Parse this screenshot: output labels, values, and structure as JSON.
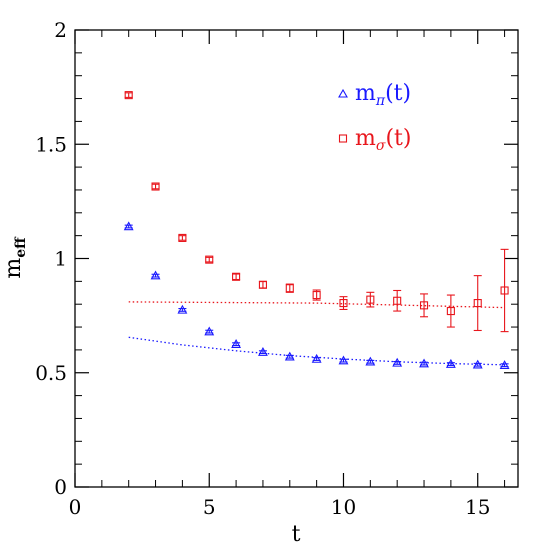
{
  "chart_data": {
    "type": "scatter",
    "xlabel": "t",
    "ylabel": {
      "base": "m",
      "sub": "eff"
    },
    "xlim": [
      0,
      16.5
    ],
    "ylim": [
      0,
      2
    ],
    "x_ticks": [
      {
        "value": 0,
        "label": "0"
      },
      {
        "value": 5,
        "label": "5"
      },
      {
        "value": 10,
        "label": "10"
      },
      {
        "value": 15,
        "label": "15"
      }
    ],
    "y_ticks": [
      {
        "value": 0,
        "label": "0"
      },
      {
        "value": 0.5,
        "label": "0.5"
      },
      {
        "value": 1,
        "label": "1"
      },
      {
        "value": 1.5,
        "label": "1.5"
      },
      {
        "value": 2,
        "label": "2"
      }
    ],
    "x_minor_step": 1,
    "y_minor_step": 0.1,
    "legend_position": "top-right",
    "series": [
      {
        "name": "m_π(t)",
        "legend": {
          "base": "m",
          "sub": "π",
          "suffix": "(t)"
        },
        "marker": "triangle",
        "color": "#1a1aff",
        "x": [
          2,
          3,
          4,
          5,
          6,
          7,
          8,
          9,
          10,
          11,
          12,
          13,
          14,
          15,
          16
        ],
        "y": [
          1.14,
          0.925,
          0.775,
          0.68,
          0.625,
          0.59,
          0.57,
          0.56,
          0.553,
          0.548,
          0.543,
          0.54,
          0.538,
          0.535,
          0.533
        ],
        "err": [
          0.006,
          0.006,
          0.006,
          0.006,
          0.006,
          0.006,
          0.006,
          0.006,
          0.006,
          0.006,
          0.006,
          0.006,
          0.006,
          0.006,
          0.006
        ],
        "fit": {
          "x": [
            2,
            4,
            6,
            8,
            10,
            12,
            14,
            16
          ],
          "y": [
            0.655,
            0.622,
            0.596,
            0.575,
            0.56,
            0.548,
            0.54,
            0.535
          ]
        }
      },
      {
        "name": "m_σ(t)",
        "legend": {
          "base": "m",
          "sub": "σ",
          "suffix": "(t)"
        },
        "marker": "square",
        "color": "#e8161c",
        "x": [
          2,
          3,
          4,
          5,
          6,
          7,
          8,
          9,
          10,
          11,
          12,
          13,
          14,
          15,
          16
        ],
        "y": [
          1.715,
          1.315,
          1.09,
          0.995,
          0.92,
          0.885,
          0.87,
          0.84,
          0.805,
          0.82,
          0.815,
          0.795,
          0.77,
          0.805,
          0.86
        ],
        "err": [
          0.01,
          0.01,
          0.01,
          0.01,
          0.012,
          0.014,
          0.018,
          0.022,
          0.028,
          0.032,
          0.045,
          0.05,
          0.07,
          0.12,
          0.18
        ],
        "fit": {
          "x": [
            2,
            9,
            16
          ],
          "y": [
            0.81,
            0.805,
            0.785
          ]
        }
      }
    ]
  }
}
